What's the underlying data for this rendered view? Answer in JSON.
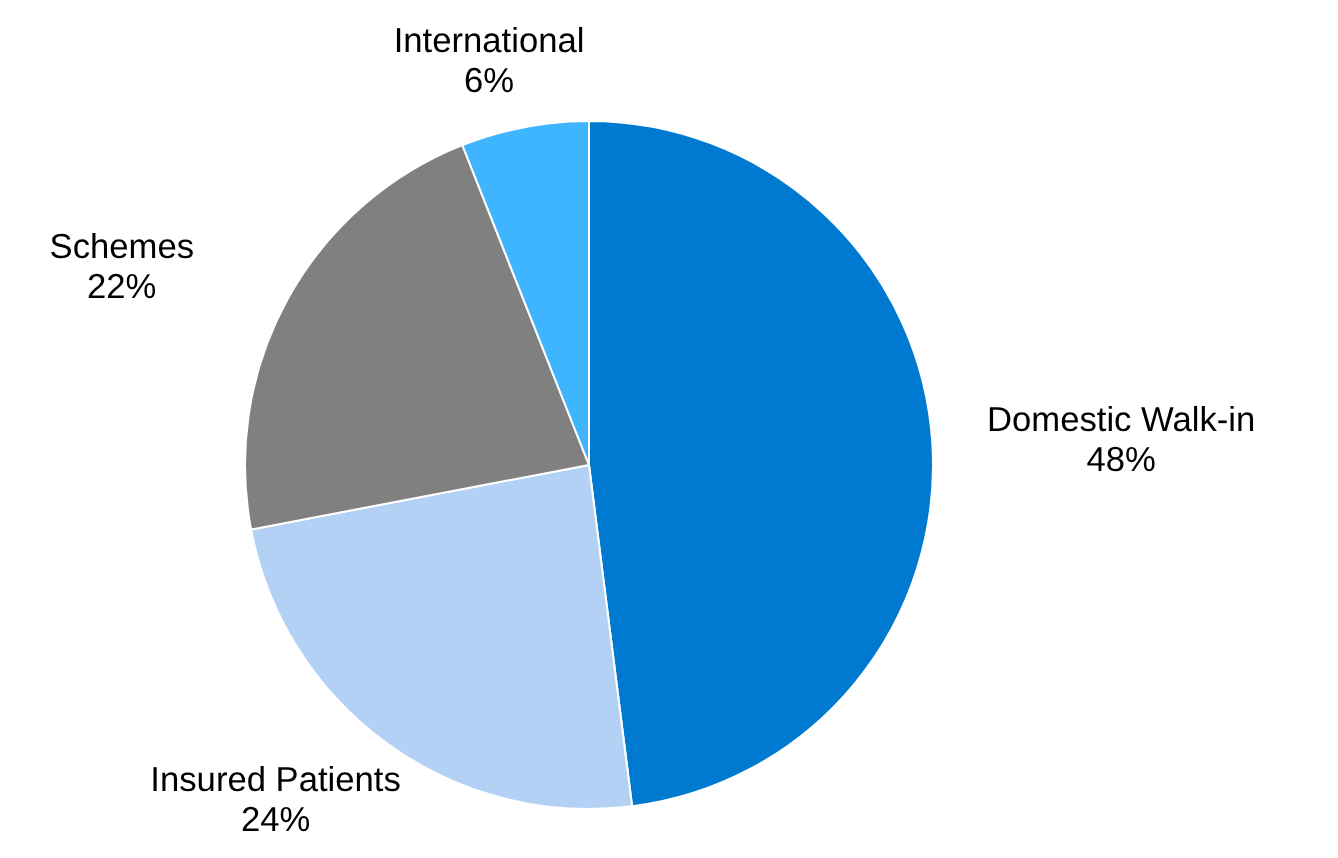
{
  "chart_data": {
    "type": "pie",
    "categories": [
      "Domestic Walk-in",
      "Insured Patients",
      "Schemes",
      "International"
    ],
    "values": [
      48,
      24,
      22,
      6
    ],
    "value_labels": [
      "48%",
      "24%",
      "22%",
      "6%"
    ],
    "colors": [
      "#007ad0",
      "#b3d1f5",
      "#808080",
      "#3fb4ff"
    ]
  }
}
